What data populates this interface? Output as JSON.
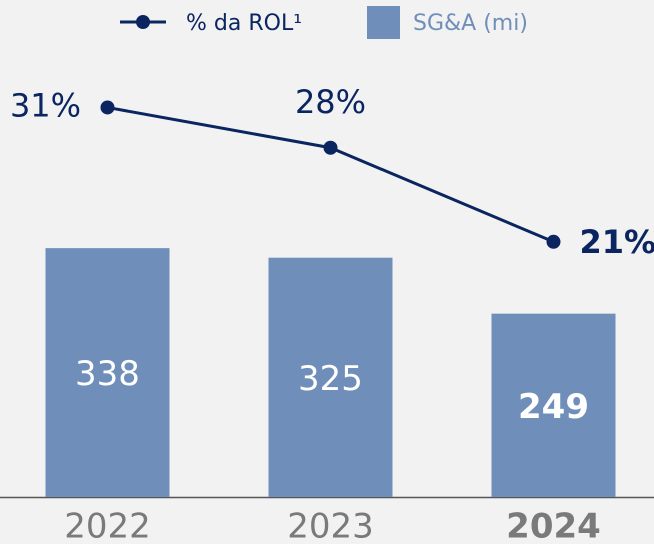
{
  "chart_data": {
    "type": "bar_line",
    "categories": [
      "2022",
      "2023",
      "2024"
    ],
    "ylim": [
      0,
      675
    ],
    "y2lim": [
      2,
      39
    ],
    "series": [
      {
        "name": "SG&A (mi)",
        "type": "bar",
        "color": "#6f8fba",
        "values": [
          338,
          325,
          249
        ]
      },
      {
        "name": "% da ROL¹",
        "type": "line",
        "axis": "y2",
        "color": "#0b2560",
        "values": [
          31,
          28,
          21
        ],
        "value_labels": [
          "31%",
          "28%",
          "21%"
        ]
      }
    ]
  }
}
